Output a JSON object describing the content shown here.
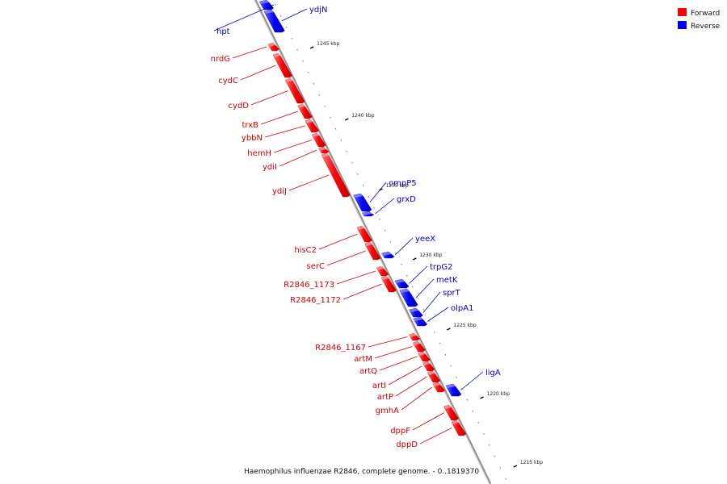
{
  "caption": "Haemophilus influenzae R2846, complete genome. - 0..1819370",
  "legend": [
    {
      "label": "Forward",
      "color": "#ff0000"
    },
    {
      "label": "Reverse",
      "color": "#0000ff"
    }
  ],
  "colors": {
    "forward": "#ff0000",
    "reverse": "#0000ff",
    "backbone": "#909090"
  },
  "ticks": [
    {
      "label": "1245 kbp"
    },
    {
      "label": "1240 kbp"
    },
    {
      "label": "1235 kbp"
    },
    {
      "label": "1230 kbp"
    },
    {
      "label": "1225 kbp"
    },
    {
      "label": "1220 kbp"
    },
    {
      "label": "1215 kbp"
    }
  ],
  "genes": [
    {
      "name": "ydjN",
      "strand": "reverse"
    },
    {
      "name": "hpt",
      "strand": "reverse"
    },
    {
      "name": "nrdG",
      "strand": "forward"
    },
    {
      "name": "cydC",
      "strand": "forward"
    },
    {
      "name": "cydD",
      "strand": "forward"
    },
    {
      "name": "trxB",
      "strand": "forward"
    },
    {
      "name": "ybbN",
      "strand": "forward"
    },
    {
      "name": "hemH",
      "strand": "forward"
    },
    {
      "name": "ydiI",
      "strand": "forward"
    },
    {
      "name": "ydiJ",
      "strand": "forward"
    },
    {
      "name": "ompP5",
      "strand": "reverse"
    },
    {
      "name": "grxD",
      "strand": "reverse"
    },
    {
      "name": "hisC2",
      "strand": "forward"
    },
    {
      "name": "serC",
      "strand": "forward"
    },
    {
      "name": "yeeX",
      "strand": "reverse"
    },
    {
      "name": "R2846_1173",
      "strand": "forward"
    },
    {
      "name": "R2846_1172",
      "strand": "forward"
    },
    {
      "name": "trpG2",
      "strand": "reverse"
    },
    {
      "name": "metK",
      "strand": "reverse"
    },
    {
      "name": "sprT",
      "strand": "reverse"
    },
    {
      "name": "olpA1",
      "strand": "reverse"
    },
    {
      "name": "R2846_1167",
      "strand": "forward"
    },
    {
      "name": "artM",
      "strand": "forward"
    },
    {
      "name": "artQ",
      "strand": "forward"
    },
    {
      "name": "artI",
      "strand": "forward"
    },
    {
      "name": "artP",
      "strand": "forward"
    },
    {
      "name": "gmhA",
      "strand": "forward"
    },
    {
      "name": "ligA",
      "strand": "reverse"
    },
    {
      "name": "dppF",
      "strand": "forward"
    },
    {
      "name": "dppD",
      "strand": "forward"
    }
  ]
}
